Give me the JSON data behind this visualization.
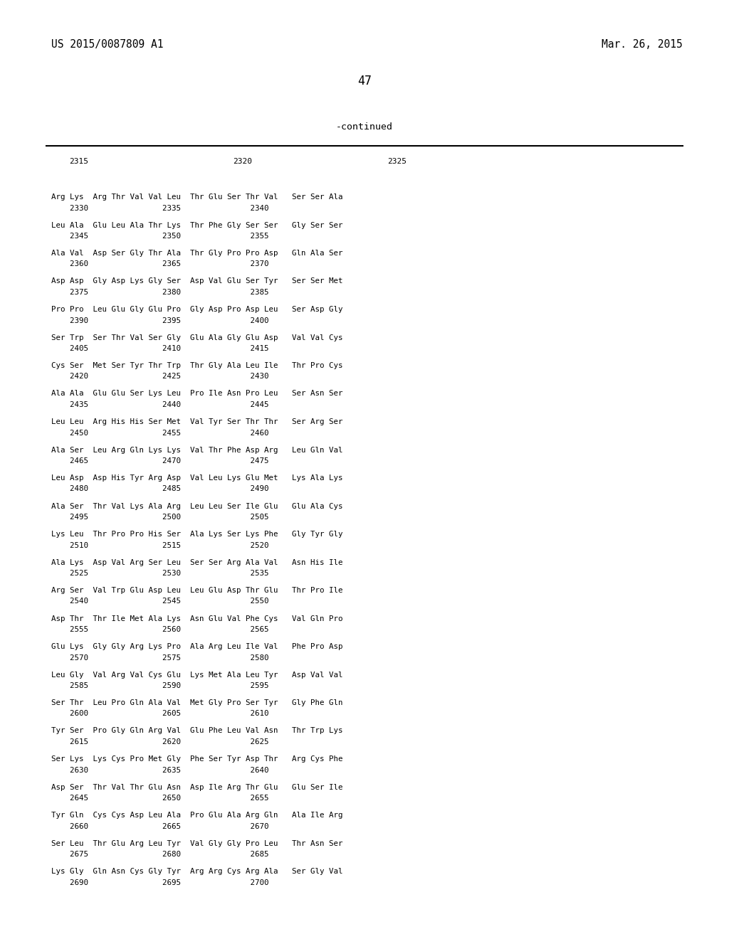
{
  "header_left": "US 2015/0087809 A1",
  "header_right": "Mar. 26, 2015",
  "page_number": "47",
  "continued_label": "-continued",
  "background_color": "#ffffff",
  "text_color": "#000000",
  "aa_lines": [
    "Arg Lys  Arg Thr Val Val Leu  Thr Glu Ser Thr Val   Ser Ser Ala",
    "Leu Ala  Glu Leu Ala Thr Lys  Thr Phe Gly Ser Ser   Gly Ser Ser",
    "Ala Val  Asp Ser Gly Thr Ala  Thr Gly Pro Pro Asp   Gln Ala Ser",
    "Asp Asp  Gly Asp Lys Gly Ser  Asp Val Glu Ser Tyr   Ser Ser Met",
    "Pro Pro  Leu Glu Gly Glu Pro  Gly Asp Pro Asp Leu   Ser Asp Gly",
    "Ser Trp  Ser Thr Val Ser Gly  Glu Ala Gly Glu Asp   Val Val Cys",
    "Cys Ser  Met Ser Tyr Thr Trp  Thr Gly Ala Leu Ile   Thr Pro Cys",
    "Ala Ala  Glu Glu Ser Lys Leu  Pro Ile Asn Pro Leu   Ser Asn Ser",
    "Leu Leu  Arg His His Ser Met  Val Tyr Ser Thr Thr   Ser Arg Ser",
    "Ala Ser  Leu Arg Gln Lys Lys  Val Thr Phe Asp Arg   Leu Gln Val",
    "Leu Asp  Asp His Tyr Arg Asp  Val Leu Lys Glu Met   Lys Ala Lys",
    "Ala Ser  Thr Val Lys Ala Arg  Leu Leu Ser Ile Glu   Glu Ala Cys",
    "Lys Leu  Thr Pro Pro His Ser  Ala Lys Ser Lys Phe   Gly Tyr Gly",
    "Ala Lys  Asp Val Arg Ser Leu  Ser Ser Arg Ala Val   Asn His Ile",
    "Arg Ser  Val Trp Glu Asp Leu  Leu Glu Asp Thr Glu   Thr Pro Ile",
    "Asp Thr  Thr Ile Met Ala Lys  Asn Glu Val Phe Cys   Val Gln Pro",
    "Glu Lys  Gly Gly Arg Lys Pro  Ala Arg Leu Ile Val   Phe Pro Asp",
    "Leu Gly  Val Arg Val Cys Glu  Lys Met Ala Leu Tyr   Asp Val Val",
    "Ser Thr  Leu Pro Gln Ala Val  Met Gly Pro Ser Tyr   Gly Phe Gln",
    "Tyr Ser  Pro Gly Gln Arg Val  Glu Phe Leu Val Asn   Thr Trp Lys",
    "Ser Lys  Lys Cys Pro Met Gly  Phe Ser Tyr Asp Thr   Arg Cys Phe",
    "Asp Ser  Thr Val Thr Glu Asn  Asp Ile Arg Thr Glu   Glu Ser Ile",
    "Tyr Gln  Cys Cys Asp Leu Ala  Pro Glu Ala Arg Gln   Ala Ile Arg",
    "Ser Leu  Thr Glu Arg Leu Tyr  Val Gly Gly Pro Leu   Thr Asn Ser",
    "Lys Gly  Gln Asn Cys Gly Tyr  Arg Arg Cys Arg Ala   Ser Gly Val"
  ],
  "num_lines": [
    "    2330                2335               2340",
    "    2345                2350               2355",
    "    2360                2365               2370",
    "    2375                2380               2385",
    "    2390                2395               2400",
    "    2405                2410               2415",
    "    2420                2425               2430",
    "    2435                2440               2445",
    "    2450                2455               2460",
    "    2465                2470               2475",
    "    2480                2485               2490",
    "    2495                2500               2505",
    "    2510                2515               2520",
    "    2525                2530               2535",
    "    2540                2545               2550",
    "    2555                2560               2565",
    "    2570                2575               2580",
    "    2585                2590               2595",
    "    2600                2605               2610",
    "    2615                2620               2625",
    "    2630                2635               2640",
    "    2645                2650               2655",
    "    2660                2665               2670",
    "    2675                2680               2685",
    "    2690                2695               2700"
  ]
}
